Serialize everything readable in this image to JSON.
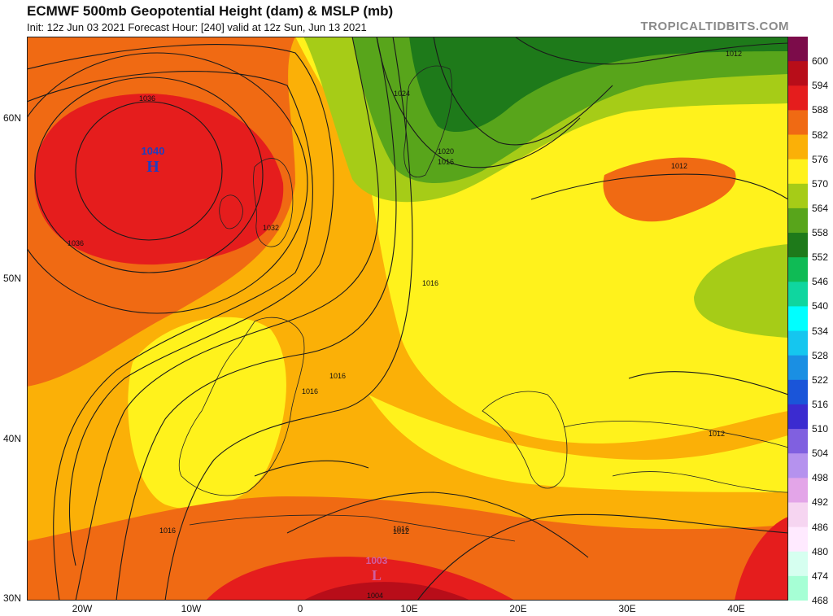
{
  "header": {
    "title": "ECMWF 500mb Geopotential Height (dam) & MSLP (mb)",
    "subtitle": "Init: 12z Jun 03 2021   Forecast Hour: [240]   valid at 12z Sun, Jun 13 2021",
    "brand": "TROPICALTIDBITS.COM"
  },
  "axes": {
    "lat_labels": [
      "60N",
      "50N",
      "40N",
      "30N"
    ],
    "lon_labels": [
      "20W",
      "10W",
      "0",
      "10E",
      "20E",
      "30E",
      "40E"
    ]
  },
  "pressure_systems": [
    {
      "type": "H",
      "value": "1040",
      "color": "#1f3fbf"
    },
    {
      "type": "L",
      "value": "1003",
      "color": "#d05fa0"
    }
  ],
  "isobar_labels": [
    "1036",
    "1036",
    "1032",
    "1024",
    "1020",
    "1016",
    "1016",
    "1016",
    "1016",
    "1016",
    "1016",
    "1012",
    "1012",
    "1012",
    "1012",
    "1004"
  ],
  "colorbar": {
    "labels": [
      "600",
      "594",
      "588",
      "582",
      "576",
      "570",
      "564",
      "558",
      "552",
      "546",
      "540",
      "534",
      "528",
      "522",
      "516",
      "510",
      "504",
      "498",
      "492",
      "486",
      "480",
      "474",
      "468"
    ],
    "colors": [
      "#7c0c4a",
      "#b80d19",
      "#e51d1d",
      "#f06a13",
      "#fbb007",
      "#fff21c",
      "#a6cc17",
      "#58a51b",
      "#1e7a1a",
      "#0fbb55",
      "#0fd69f",
      "#00ffff",
      "#15c6ef",
      "#1a8fe3",
      "#1a55d9",
      "#3b2bd0",
      "#8060e0",
      "#b592ee",
      "#e3a5e8",
      "#f6d5f1",
      "#ffeaff",
      "#d6fff0",
      "#a6ffd5"
    ]
  },
  "colors": {
    "h594": "#b80d19",
    "h588": "#e51d1d",
    "h582": "#f06a13",
    "h576": "#fbb007",
    "h570": "#fff21c",
    "h564": "#a6cc17",
    "h558": "#58a51b",
    "h552": "#1e7a1a"
  }
}
